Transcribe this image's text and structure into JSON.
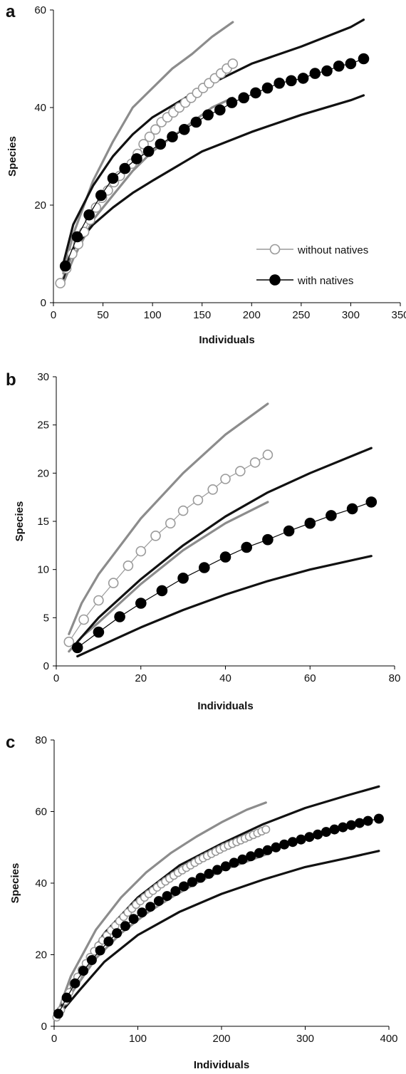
{
  "colors": {
    "observed_with": "#000000",
    "observed_without": "#9a9a9a",
    "ci_with": "#111111",
    "ci_without": "#8c8c8c"
  },
  "legend": {
    "without_label": "without natives",
    "with_label": "with natives"
  },
  "chart_data": [
    {
      "panel_label": "a",
      "type": "line",
      "xlabel": "Individuals",
      "ylabel": "Species",
      "xlim": [
        0,
        350
      ],
      "ylim": [
        0,
        60
      ],
      "xticks": [
        0,
        50,
        100,
        150,
        200,
        250,
        300,
        350
      ],
      "yticks": [
        0,
        20,
        40,
        60
      ],
      "legend_position": "right",
      "series": [
        {
          "name": "without natives",
          "marker": "open",
          "x": [
            7,
            13,
            19,
            25,
            31,
            37,
            43,
            49,
            55,
            61,
            67,
            73,
            79,
            85,
            91,
            97,
            103,
            109,
            115,
            121,
            127,
            133,
            139,
            145,
            151,
            157,
            163,
            169,
            175,
            181
          ],
          "y": [
            4,
            7,
            10,
            12,
            14.5,
            17,
            19.5,
            21.5,
            23,
            24.7,
            26,
            27.5,
            28.5,
            30.5,
            32.5,
            34,
            35.5,
            37,
            38,
            39,
            40,
            41,
            42,
            43,
            44,
            45,
            46,
            47,
            48,
            49
          ]
        },
        {
          "name": "with natives",
          "marker": "filled",
          "x": [
            12,
            24,
            36,
            48,
            60,
            72,
            84,
            96,
            108,
            120,
            132,
            144,
            156,
            168,
            180,
            192,
            204,
            216,
            228,
            240,
            252,
            264,
            276,
            288,
            300,
            313
          ],
          "y": [
            7.5,
            13.5,
            18,
            22,
            25.5,
            27.5,
            29.5,
            31,
            32.5,
            34,
            35.5,
            37,
            38.5,
            39.5,
            41,
            42,
            43,
            44,
            45,
            45.5,
            46,
            47,
            47.5,
            48.5,
            49,
            50
          ]
        }
      ],
      "ci_bands": [
        {
          "group": "without natives",
          "bound": "upper",
          "x": [
            10,
            20,
            40,
            60,
            80,
            100,
            120,
            140,
            160,
            181
          ],
          "y": [
            6,
            14,
            25,
            33,
            40,
            44,
            48,
            51,
            54.5,
            57.5
          ]
        },
        {
          "group": "without natives",
          "bound": "lower",
          "x": [
            10,
            20,
            40,
            60,
            80,
            100,
            120,
            140,
            160,
            181
          ],
          "y": [
            4,
            9,
            17,
            22,
            27,
            31,
            34,
            37,
            40,
            42
          ]
        },
        {
          "group": "with natives",
          "bound": "upper",
          "x": [
            10,
            20,
            40,
            60,
            80,
            100,
            150,
            200,
            250,
            300,
            313
          ],
          "y": [
            8,
            16,
            24,
            30,
            34.5,
            38,
            44,
            49,
            52.5,
            56.5,
            58
          ]
        },
        {
          "group": "with natives",
          "bound": "lower",
          "x": [
            10,
            20,
            40,
            60,
            80,
            100,
            150,
            200,
            250,
            300,
            313
          ],
          "y": [
            5,
            11,
            16,
            19.5,
            22.5,
            25,
            31,
            35,
            38.5,
            41.5,
            42.5
          ]
        }
      ]
    },
    {
      "panel_label": "b",
      "type": "line",
      "xlabel": "Individuals",
      "ylabel": "Species",
      "xlim": [
        0,
        80
      ],
      "ylim": [
        0,
        30
      ],
      "xticks": [
        0,
        20,
        40,
        60,
        80
      ],
      "yticks": [
        0,
        5,
        10,
        15,
        20,
        25,
        30
      ],
      "series": [
        {
          "name": "without natives",
          "marker": "open",
          "x": [
            3,
            6.5,
            10,
            13.5,
            17,
            20,
            23.5,
            27,
            30,
            33.5,
            37,
            40,
            43.5,
            47,
            50
          ],
          "y": [
            2.5,
            4.8,
            6.8,
            8.6,
            10.4,
            11.9,
            13.5,
            14.8,
            16.1,
            17.2,
            18.3,
            19.4,
            20.2,
            21.1,
            21.9
          ]
        },
        {
          "name": "with natives",
          "marker": "filled",
          "x": [
            5,
            10,
            15,
            20,
            25,
            30,
            35,
            40,
            45,
            50,
            55,
            60,
            65,
            70,
            74.5
          ],
          "y": [
            1.9,
            3.5,
            5.1,
            6.5,
            7.8,
            9.1,
            10.2,
            11.3,
            12.3,
            13.1,
            14,
            14.8,
            15.6,
            16.3,
            17
          ]
        }
      ],
      "ci_bands": [
        {
          "group": "without natives",
          "bound": "upper",
          "x": [
            3,
            6,
            10,
            20,
            30,
            40,
            50
          ],
          "y": [
            3.3,
            6.5,
            9.5,
            15.3,
            20,
            24,
            27.2
          ]
        },
        {
          "group": "without natives",
          "bound": "lower",
          "x": [
            3,
            6,
            10,
            20,
            30,
            40,
            50
          ],
          "y": [
            1.5,
            3,
            4.5,
            8.5,
            12,
            14.8,
            17
          ]
        },
        {
          "group": "with natives",
          "bound": "upper",
          "x": [
            5,
            10,
            20,
            30,
            40,
            50,
            60,
            74.5
          ],
          "y": [
            2.5,
            5,
            9,
            12.5,
            15.5,
            18,
            20,
            22.6
          ]
        },
        {
          "group": "with natives",
          "bound": "lower",
          "x": [
            5,
            10,
            20,
            30,
            40,
            50,
            60,
            74.5
          ],
          "y": [
            1,
            2,
            4,
            5.8,
            7.4,
            8.8,
            10,
            11.4
          ]
        }
      ]
    },
    {
      "panel_label": "c",
      "type": "line",
      "xlabel": "Individuals",
      "ylabel": "Species",
      "xlim": [
        0,
        400
      ],
      "ylim": [
        0,
        80
      ],
      "xticks": [
        0,
        100,
        200,
        300,
        400
      ],
      "yticks": [
        0,
        20,
        40,
        60,
        80
      ],
      "series": [
        {
          "name": "without natives",
          "marker": "open",
          "x": [
            3,
            8,
            13,
            18,
            23,
            28,
            33,
            38,
            43,
            48,
            53,
            58,
            63,
            68,
            73,
            78,
            83,
            88,
            93,
            98,
            103,
            108,
            113,
            118,
            123,
            128,
            133,
            138,
            143,
            148,
            153,
            158,
            163,
            168,
            173,
            178,
            183,
            188,
            193,
            198,
            203,
            208,
            213,
            218,
            223,
            228,
            233,
            238,
            243,
            248,
            253
          ],
          "y": [
            2.5,
            4.5,
            7,
            9.5,
            11.8,
            13.8,
            15.8,
            17.6,
            19.3,
            21,
            22.5,
            24,
            25.4,
            26.8,
            28.1,
            29.4,
            30.6,
            31.8,
            32.9,
            34,
            35,
            36,
            37,
            37.9,
            38.8,
            39.7,
            40.5,
            41.3,
            42.1,
            42.9,
            43.6,
            44.3,
            45,
            45.7,
            46.4,
            47,
            47.6,
            48.2,
            48.8,
            49.4,
            50,
            50.5,
            51,
            51.5,
            52,
            52.5,
            53,
            53.5,
            54,
            54.5,
            55
          ]
        },
        {
          "name": "with natives",
          "marker": "filled",
          "x": [
            5,
            15,
            25,
            35,
            45,
            55,
            65,
            75,
            85,
            95,
            105,
            115,
            125,
            135,
            145,
            155,
            165,
            175,
            185,
            195,
            205,
            215,
            225,
            235,
            245,
            255,
            265,
            275,
            285,
            295,
            305,
            315,
            325,
            335,
            345,
            355,
            365,
            375,
            388
          ],
          "y": [
            3.5,
            8,
            12,
            15.5,
            18.5,
            21.2,
            23.7,
            26,
            28,
            30,
            31.8,
            33.4,
            35,
            36.4,
            37.8,
            39.1,
            40.3,
            41.5,
            42.6,
            43.7,
            44.7,
            45.7,
            46.6,
            47.5,
            48.4,
            49.2,
            50,
            50.8,
            51.5,
            52.2,
            52.9,
            53.6,
            54.3,
            55,
            55.6,
            56.2,
            56.8,
            57.4,
            58
          ]
        }
      ],
      "ci_bands": [
        {
          "group": "without natives",
          "bound": "upper",
          "x": [
            3,
            20,
            50,
            80,
            110,
            140,
            170,
            200,
            230,
            253
          ],
          "y": [
            3,
            14,
            27,
            36,
            43,
            48.5,
            53,
            57,
            60.5,
            62.5
          ]
        },
        {
          "group": "without natives",
          "bound": "lower",
          "x": [
            3,
            20,
            50,
            80,
            110,
            140,
            170,
            200,
            230,
            253
          ],
          "y": [
            2,
            9,
            19,
            26,
            31.5,
            36,
            40,
            43.5,
            46,
            48
          ]
        },
        {
          "group": "with natives",
          "bound": "upper",
          "x": [
            5,
            30,
            60,
            100,
            150,
            200,
            250,
            300,
            350,
            388
          ],
          "y": [
            4,
            15,
            26,
            36,
            45,
            51,
            56.5,
            61,
            64.5,
            67
          ]
        },
        {
          "group": "with natives",
          "bound": "lower",
          "x": [
            5,
            30,
            60,
            100,
            150,
            200,
            250,
            300,
            350,
            388
          ],
          "y": [
            3,
            10,
            18,
            25.5,
            32,
            37,
            41,
            44.5,
            47,
            49
          ]
        }
      ]
    }
  ]
}
